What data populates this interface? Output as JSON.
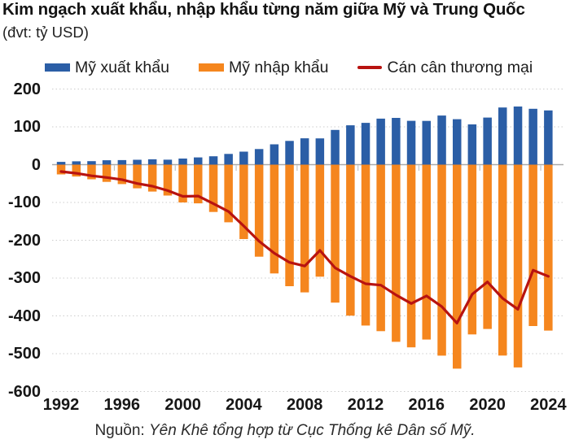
{
  "header": {
    "title": "Kim ngạch xuất khẩu, nhập khẩu từng năm giữa Mỹ và Trung Quốc",
    "subtitle": "(đvt: tỷ USD)"
  },
  "legend": [
    {
      "label": "Mỹ xuất khẩu",
      "color": "#2b5ea6",
      "swatch": "square"
    },
    {
      "label": "Mỹ nhập khẩu",
      "color": "#f5861e",
      "swatch": "square"
    },
    {
      "label": "Cán cân thương mại",
      "color": "#b81310",
      "swatch": "line"
    }
  ],
  "source": {
    "prefix": "Nguồn: ",
    "text": "Yên Khê tổng hợp từ Cục Thống kê Dân số Mỹ."
  },
  "chart_data": {
    "type": "combo-bar-line",
    "title": "Kim ngạch xuất khẩu, nhập khẩu từng năm giữa Mỹ và Trung Quốc",
    "unit": "tỷ USD",
    "x": [
      1992,
      1993,
      1994,
      1995,
      1996,
      1997,
      1998,
      1999,
      2000,
      2001,
      2002,
      2003,
      2004,
      2005,
      2006,
      2007,
      2008,
      2009,
      2010,
      2011,
      2012,
      2013,
      2014,
      2015,
      2016,
      2017,
      2018,
      2019,
      2020,
      2021,
      2022,
      2023,
      2024
    ],
    "series": [
      {
        "name": "Mỹ xuất khẩu",
        "type": "bar",
        "color": "#2b5ea6",
        "values": [
          7.4,
          8.8,
          9.3,
          11.7,
          12.0,
          12.8,
          14.2,
          13.1,
          16.2,
          19.2,
          22.1,
          28.4,
          34.4,
          41.2,
          53.7,
          62.9,
          69.7,
          69.5,
          91.9,
          104.1,
          110.5,
          121.7,
          123.7,
          115.9,
          115.6,
          129.8,
          120.3,
          106.4,
          124.5,
          151.1,
          153.8,
          147.8,
          143.5
        ]
      },
      {
        "name": "Mỹ nhập khẩu",
        "type": "bar",
        "color": "#f5861e",
        "values": [
          -25.7,
          -31.5,
          -38.8,
          -45.6,
          -51.5,
          -62.6,
          -71.2,
          -81.8,
          -100.0,
          -102.3,
          -125.2,
          -152.4,
          -196.7,
          -243.5,
          -287.8,
          -321.4,
          -337.8,
          -296.4,
          -365.0,
          -399.4,
          -425.6,
          -440.4,
          -468.5,
          -483.2,
          -462.6,
          -505.2,
          -539.5,
          -449.1,
          -434.7,
          -504.9,
          -536.3,
          -426.9,
          -438.9
        ]
      },
      {
        "name": "Cán cân thương mại",
        "type": "line",
        "color": "#b81310",
        "values": [
          -18.3,
          -22.7,
          -29.5,
          -33.9,
          -39.5,
          -49.8,
          -57.0,
          -68.7,
          -83.8,
          -83.1,
          -103.1,
          -124.0,
          -162.3,
          -202.3,
          -234.1,
          -258.5,
          -268.1,
          -226.9,
          -273.1,
          -295.3,
          -315.1,
          -318.7,
          -344.8,
          -367.3,
          -347.0,
          -375.4,
          -419.2,
          -342.7,
          -310.2,
          -353.8,
          -382.5,
          -279.1,
          -295.4
        ]
      }
    ],
    "ylim": [
      -600,
      200
    ],
    "y_ticks": [
      200,
      100,
      0,
      -100,
      -200,
      -300,
      -400,
      -500,
      -600
    ],
    "x_tick_labels": [
      1992,
      1996,
      2000,
      2004,
      2008,
      2012,
      2016,
      2020,
      2024
    ],
    "grid": "horizontal-dotted",
    "legend_position": "top"
  },
  "style": {
    "grid_color": "#cccccc",
    "zero_line_color": "#a9a9a9",
    "tick_color": "#c4c4c4"
  }
}
